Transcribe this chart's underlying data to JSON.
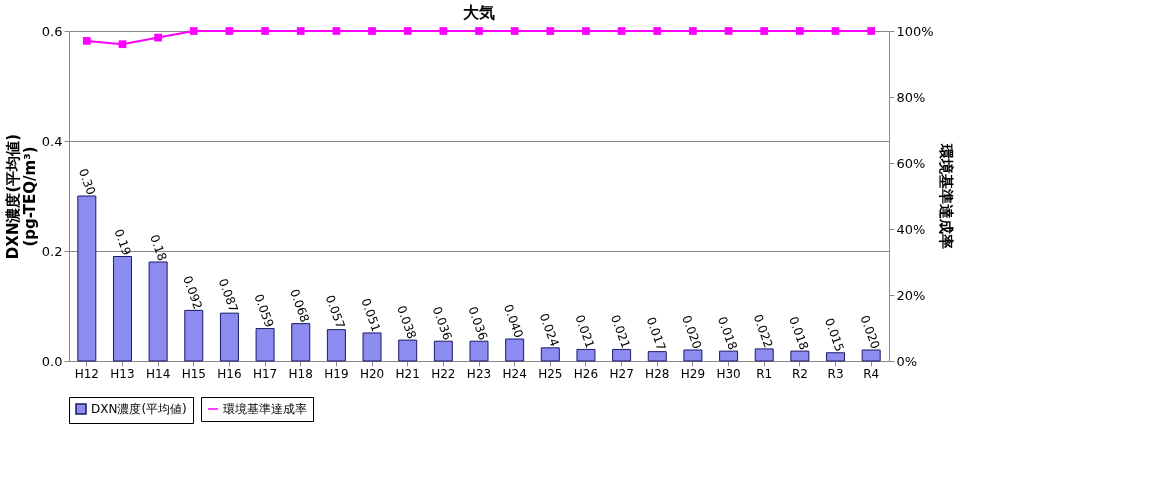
{
  "chart_data": {
    "type": "bar",
    "title": "大気",
    "categories": [
      "H12",
      "H13",
      "H14",
      "H15",
      "H16",
      "H17",
      "H18",
      "H19",
      "H20",
      "H21",
      "H22",
      "H23",
      "H24",
      "H25",
      "H26",
      "H27",
      "H28",
      "H29",
      "H30",
      "R1",
      "R2",
      "R3",
      "R4"
    ],
    "ylabel": "DXN濃度(平均値)\n(pg-TEQ/m³)",
    "y2label": "環境基準達成率",
    "series": [
      {
        "name": "DXN濃度(平均値)",
        "color": "#8c8cf0",
        "values": [
          0.3,
          0.19,
          0.18,
          0.092,
          0.087,
          0.059,
          0.068,
          0.057,
          0.051,
          0.038,
          0.036,
          0.036,
          0.04,
          0.024,
          0.021,
          0.021,
          0.017,
          0.02,
          0.018,
          0.022,
          0.018,
          0.015,
          0.02
        ],
        "value_labels": [
          "0.30",
          "0.19",
          "0.18",
          "0.092",
          "0.087",
          "0.059",
          "0.068",
          "0.057",
          "0.051",
          "0.038",
          "0.036",
          "0.036",
          "0.040",
          "0.024",
          "0.021",
          "0.021",
          "0.017",
          "0.020",
          "0.018",
          "0.022",
          "0.018",
          "0.015",
          "0.020"
        ]
      },
      {
        "name": "環境基準達成率",
        "type": "line",
        "axis": "y2",
        "color": "#ff00ff",
        "marker": "square",
        "line_style": "solid",
        "values": [
          97,
          96,
          98,
          100,
          100,
          100,
          100,
          100,
          100,
          100,
          100,
          100,
          100,
          100,
          100,
          100,
          100,
          100,
          100,
          100,
          100,
          100,
          100
        ]
      }
    ],
    "ylim": [
      0,
      0.6
    ],
    "yticks": [
      {
        "value": 0,
        "label": "0.0"
      },
      {
        "value": 0.2,
        "label": "0.2"
      },
      {
        "value": 0.4,
        "label": "0.4"
      },
      {
        "value": 0.6,
        "label": "0.6"
      }
    ],
    "y2lim": [
      0,
      100
    ],
    "y2ticks": [
      {
        "value": 0,
        "label": "0%"
      },
      {
        "value": 20,
        "label": "20%"
      },
      {
        "value": 40,
        "label": "40%"
      },
      {
        "value": 60,
        "label": "60%"
      },
      {
        "value": 80,
        "label": "80%"
      },
      {
        "value": 100,
        "label": "100%"
      }
    ],
    "grid": "y",
    "legend": "bottom"
  }
}
